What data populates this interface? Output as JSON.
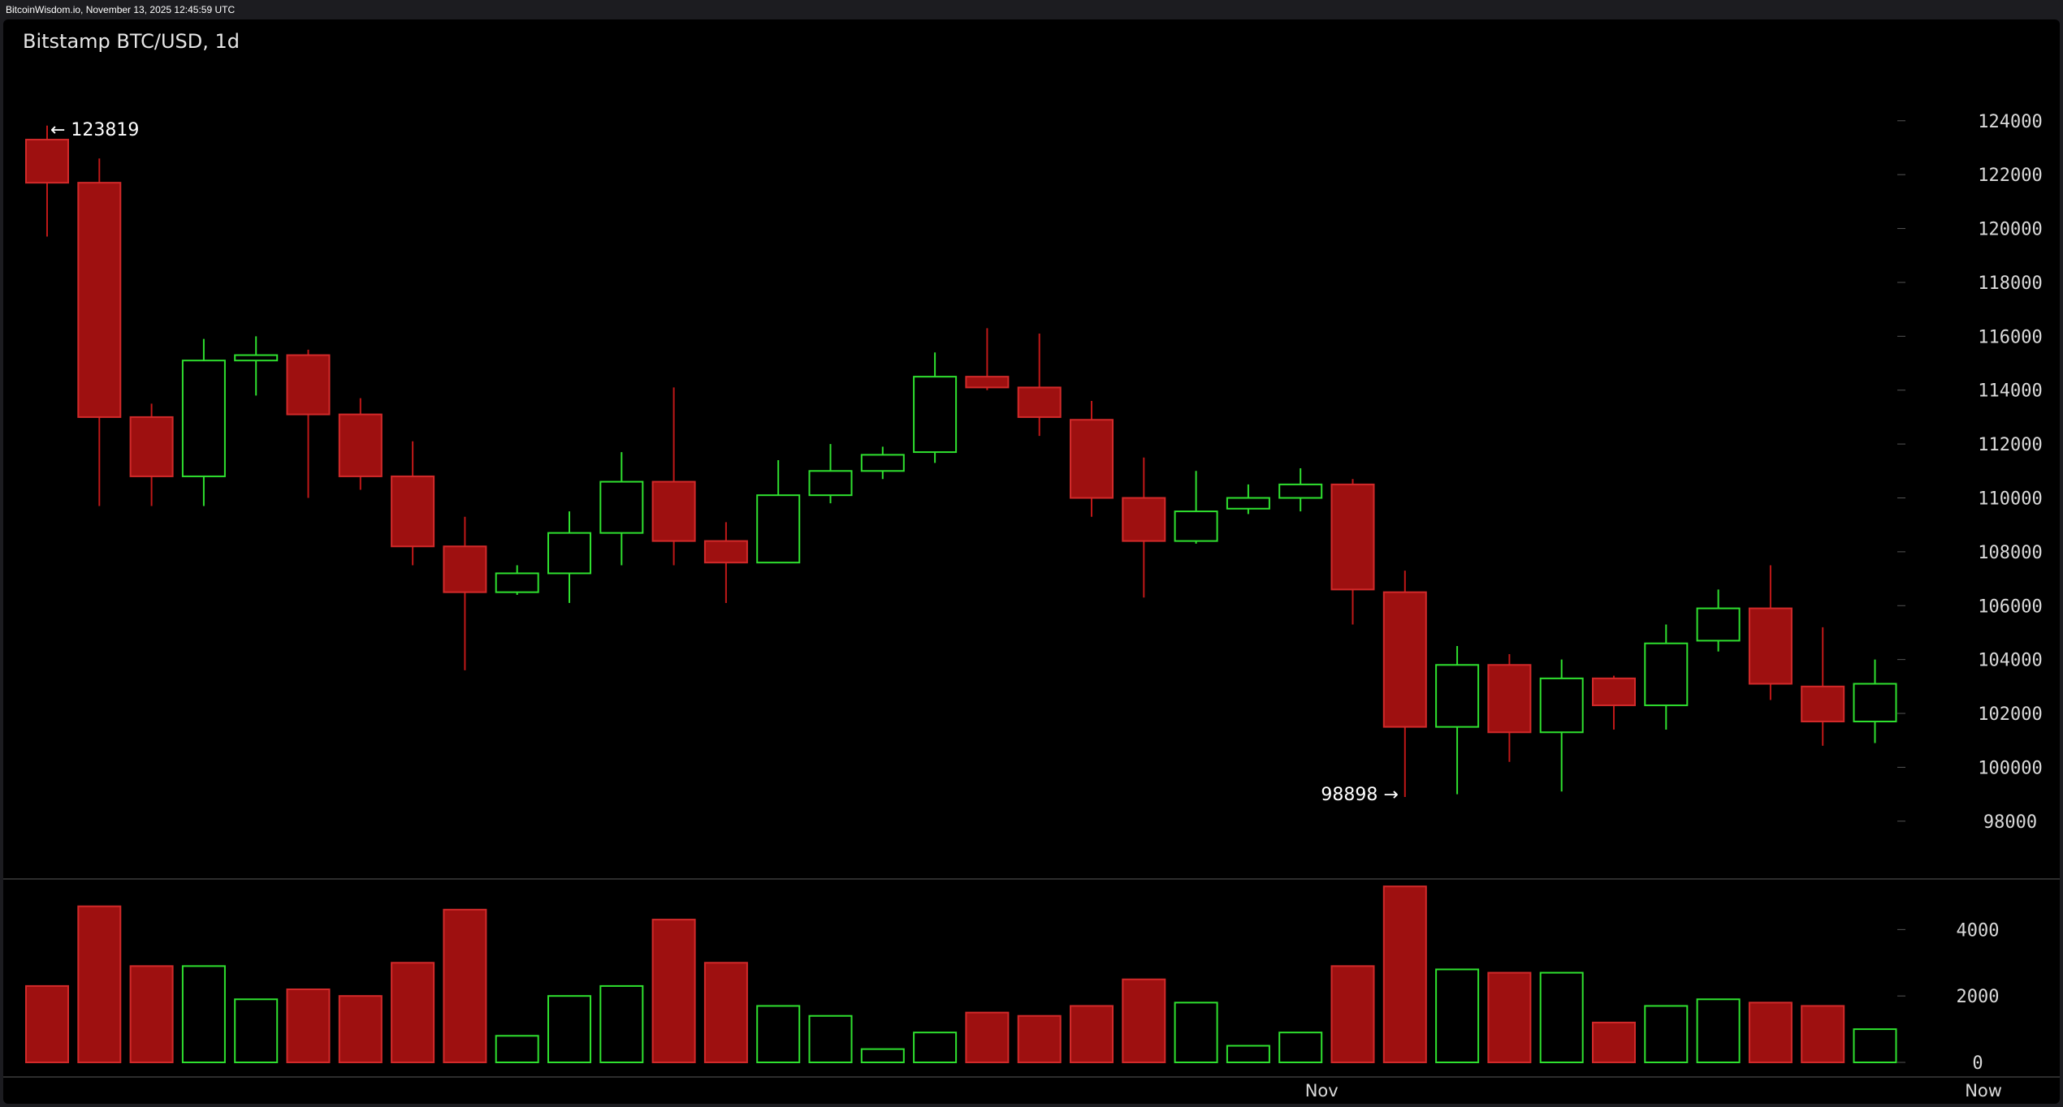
{
  "topbar": {
    "text": "BitcoinWisdom.io, November 13, 2025 12:45:59 UTC"
  },
  "chart_data": {
    "type": "candlestick",
    "title": "Bitstamp BTC/USD, 1d",
    "ylim": [
      97000,
      125500
    ],
    "price_ticks": [
      98000,
      100000,
      102000,
      104000,
      106000,
      108000,
      110000,
      112000,
      114000,
      116000,
      118000,
      120000,
      122000,
      124000
    ],
    "volume_ylim": [
      0,
      5500
    ],
    "volume_ticks": [
      0,
      2000,
      4000
    ],
    "x_labels": [
      {
        "label": "Nov",
        "index": 24
      },
      {
        "label": "Now",
        "index": 37
      }
    ],
    "annotations": [
      {
        "text": "← 123819",
        "index": 0,
        "value": 123819,
        "side": "right"
      },
      {
        "text": "98898 →",
        "index": 26,
        "value": 98898,
        "side": "left"
      }
    ],
    "colors": {
      "up": "#2fe02f",
      "down": "#9e1010",
      "down_border": "#d22a2a",
      "background": "#000000",
      "frame": "#1c1c20"
    },
    "candles": [
      {
        "o": 123300,
        "h": 123819,
        "l": 119700,
        "c": 121700,
        "v": 2300
      },
      {
        "o": 121700,
        "h": 122600,
        "l": 109700,
        "c": 113000,
        "v": 4700
      },
      {
        "o": 113000,
        "h": 113500,
        "l": 109700,
        "c": 110800,
        "v": 2900
      },
      {
        "o": 110800,
        "h": 115900,
        "l": 109700,
        "c": 115100,
        "v": 2900
      },
      {
        "o": 115100,
        "h": 116000,
        "l": 113800,
        "c": 115300,
        "v": 1900
      },
      {
        "o": 115300,
        "h": 115500,
        "l": 110000,
        "c": 113100,
        "v": 2200
      },
      {
        "o": 113100,
        "h": 113700,
        "l": 110300,
        "c": 110800,
        "v": 2000
      },
      {
        "o": 110800,
        "h": 112100,
        "l": 107500,
        "c": 108200,
        "v": 3000
      },
      {
        "o": 108200,
        "h": 109300,
        "l": 103600,
        "c": 106500,
        "v": 4600
      },
      {
        "o": 106500,
        "h": 107500,
        "l": 106400,
        "c": 107200,
        "v": 800
      },
      {
        "o": 107200,
        "h": 109500,
        "l": 106100,
        "c": 108700,
        "v": 2000
      },
      {
        "o": 108700,
        "h": 111700,
        "l": 107500,
        "c": 110600,
        "v": 2300
      },
      {
        "o": 110600,
        "h": 114100,
        "l": 107500,
        "c": 108400,
        "v": 4300
      },
      {
        "o": 108400,
        "h": 109100,
        "l": 106100,
        "c": 107600,
        "v": 3000
      },
      {
        "o": 107600,
        "h": 111400,
        "l": 107600,
        "c": 110100,
        "v": 1700
      },
      {
        "o": 110100,
        "h": 112000,
        "l": 109800,
        "c": 111000,
        "v": 1400
      },
      {
        "o": 111000,
        "h": 111900,
        "l": 110700,
        "c": 111600,
        "v": 400
      },
      {
        "o": 111700,
        "h": 115400,
        "l": 111300,
        "c": 114500,
        "v": 900
      },
      {
        "o": 114500,
        "h": 116300,
        "l": 114000,
        "c": 114100,
        "v": 1500
      },
      {
        "o": 114100,
        "h": 116100,
        "l": 112300,
        "c": 113000,
        "v": 1400
      },
      {
        "o": 112900,
        "h": 113600,
        "l": 109300,
        "c": 110000,
        "v": 1700
      },
      {
        "o": 110000,
        "h": 111500,
        "l": 106300,
        "c": 108400,
        "v": 2500
      },
      {
        "o": 108400,
        "h": 111000,
        "l": 108300,
        "c": 109500,
        "v": 1800
      },
      {
        "o": 109600,
        "h": 110500,
        "l": 109400,
        "c": 110000,
        "v": 500
      },
      {
        "o": 110000,
        "h": 111100,
        "l": 109500,
        "c": 110500,
        "v": 900
      },
      {
        "o": 110500,
        "h": 110700,
        "l": 105300,
        "c": 106600,
        "v": 2900
      },
      {
        "o": 106500,
        "h": 107300,
        "l": 98898,
        "c": 101500,
        "v": 5300
      },
      {
        "o": 101500,
        "h": 104500,
        "l": 99000,
        "c": 103800,
        "v": 2800
      },
      {
        "o": 103800,
        "h": 104200,
        "l": 100200,
        "c": 101300,
        "v": 2700
      },
      {
        "o": 101300,
        "h": 104000,
        "l": 99100,
        "c": 103300,
        "v": 2700
      },
      {
        "o": 103300,
        "h": 103400,
        "l": 101400,
        "c": 102300,
        "v": 1200
      },
      {
        "o": 102300,
        "h": 105300,
        "l": 101400,
        "c": 104600,
        "v": 1700
      },
      {
        "o": 104700,
        "h": 106600,
        "l": 104300,
        "c": 105900,
        "v": 1900
      },
      {
        "o": 105900,
        "h": 107500,
        "l": 102500,
        "c": 103100,
        "v": 1800
      },
      {
        "o": 103000,
        "h": 105200,
        "l": 100800,
        "c": 101700,
        "v": 1700
      },
      {
        "o": 101700,
        "h": 104000,
        "l": 100900,
        "c": 103100,
        "v": 1000
      }
    ]
  }
}
